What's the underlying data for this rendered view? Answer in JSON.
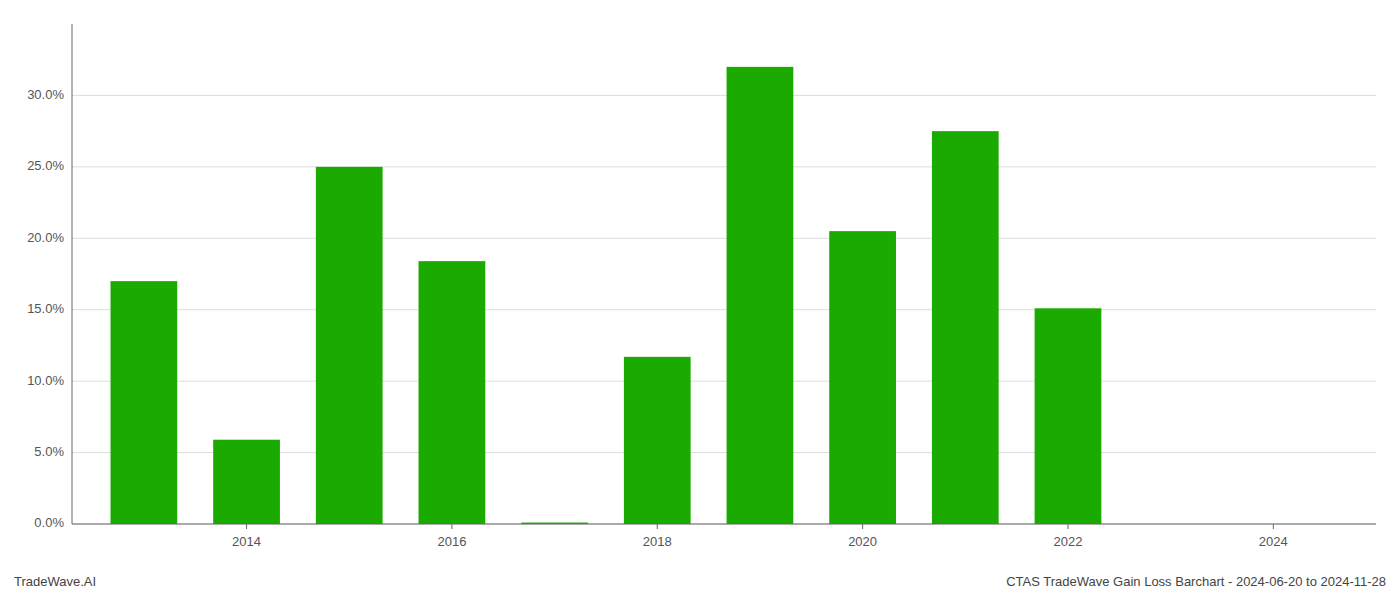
{
  "chart_data": {
    "type": "bar",
    "x": [
      2013,
      2014,
      2015,
      2016,
      2017,
      2018,
      2019,
      2020,
      2021,
      2022,
      2023,
      2024
    ],
    "values": [
      0.17,
      0.059,
      0.25,
      0.184,
      0.001,
      0.117,
      0.32,
      0.205,
      0.275,
      0.151,
      0.0,
      0.0
    ],
    "color": "#1aaa00",
    "xlim": [
      2012.3,
      2025.0
    ],
    "xticks": [
      2014,
      2016,
      2018,
      2020,
      2022,
      2024
    ],
    "ylim": [
      0,
      0.35
    ],
    "yticks": [
      {
        "value": 0.0,
        "label": "0.0%"
      },
      {
        "value": 0.05,
        "label": "5.0%"
      },
      {
        "value": 0.1,
        "label": "10.0%"
      },
      {
        "value": 0.15,
        "label": "15.0%"
      },
      {
        "value": 0.2,
        "label": "20.0%"
      },
      {
        "value": 0.25,
        "label": "25.0%"
      },
      {
        "value": 0.3,
        "label": "30.0%"
      }
    ],
    "grid": true,
    "annotations": [
      "TradeWave.AI",
      "CTAS TradeWave Gain Loss Barchart - 2024-06-20 to 2024-11-28"
    ]
  }
}
